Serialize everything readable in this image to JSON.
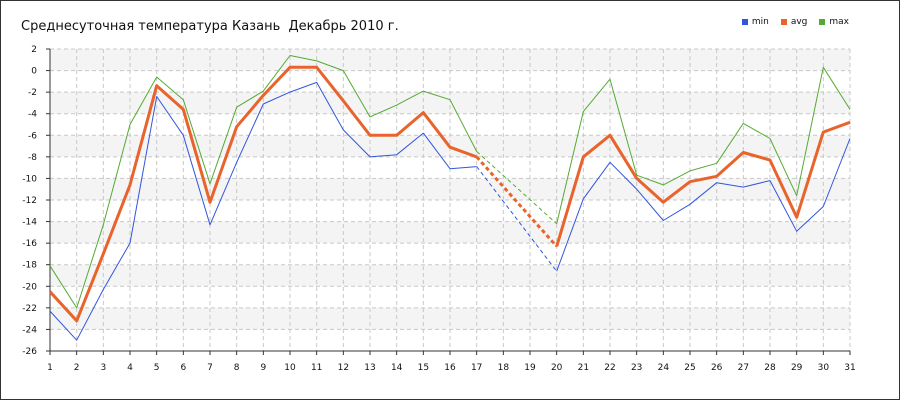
{
  "chart_data": {
    "type": "line",
    "title": "Среднесуточная температура Казань  Декабрь 2010 г.",
    "xlabel": "",
    "ylabel": "",
    "x": [
      1,
      2,
      3,
      4,
      5,
      6,
      7,
      8,
      9,
      10,
      11,
      12,
      13,
      14,
      15,
      16,
      17,
      18,
      19,
      20,
      21,
      22,
      23,
      24,
      25,
      26,
      27,
      28,
      29,
      30,
      31
    ],
    "xlim": [
      1,
      31
    ],
    "ylim": [
      -26,
      2
    ],
    "ytick_step": 2,
    "grid": true,
    "legend_position": "top-right",
    "missing_days": [
      18,
      19
    ],
    "series": [
      {
        "name": "min",
        "color": "#3355dd",
        "values": [
          -22.3,
          -25,
          -20.3,
          -16,
          -2.4,
          -6,
          -14.3,
          -8.5,
          -3.1,
          -2,
          -1.1,
          -5.5,
          -8,
          -7.8,
          -5.8,
          -9.1,
          -8.9,
          null,
          null,
          -18.6,
          -11.9,
          -8.5,
          -11,
          -13.9,
          -12.4,
          -10.4,
          -10.8,
          -10.2,
          -14.9,
          -12.6,
          -6.3
        ]
      },
      {
        "name": "avg",
        "color": "#e8642c",
        "values": [
          -20.5,
          -23.2,
          -17,
          -10.6,
          -1.4,
          -3.6,
          -12.2,
          -5.2,
          -2.3,
          0.3,
          0.3,
          -2.8,
          -6,
          -6,
          -3.9,
          -7.1,
          -8,
          null,
          null,
          -16.3,
          -8,
          -6,
          -10,
          -12.2,
          -10.3,
          -9.8,
          -7.6,
          -8.3,
          -13.6,
          -5.7,
          -4.8
        ]
      },
      {
        "name": "max",
        "color": "#55aa33",
        "values": [
          -18.1,
          -22,
          -14.3,
          -5,
          -0.6,
          -2.7,
          -10.5,
          -3.4,
          -1.9,
          1.4,
          0.9,
          0,
          -4.3,
          -3.2,
          -1.9,
          -2.7,
          -7.5,
          null,
          null,
          -14.2,
          -3.8,
          -0.8,
          -9.7,
          -10.6,
          -9.3,
          -8.6,
          -4.9,
          -6.3,
          -11.6,
          0.3,
          -3.6
        ]
      }
    ]
  }
}
